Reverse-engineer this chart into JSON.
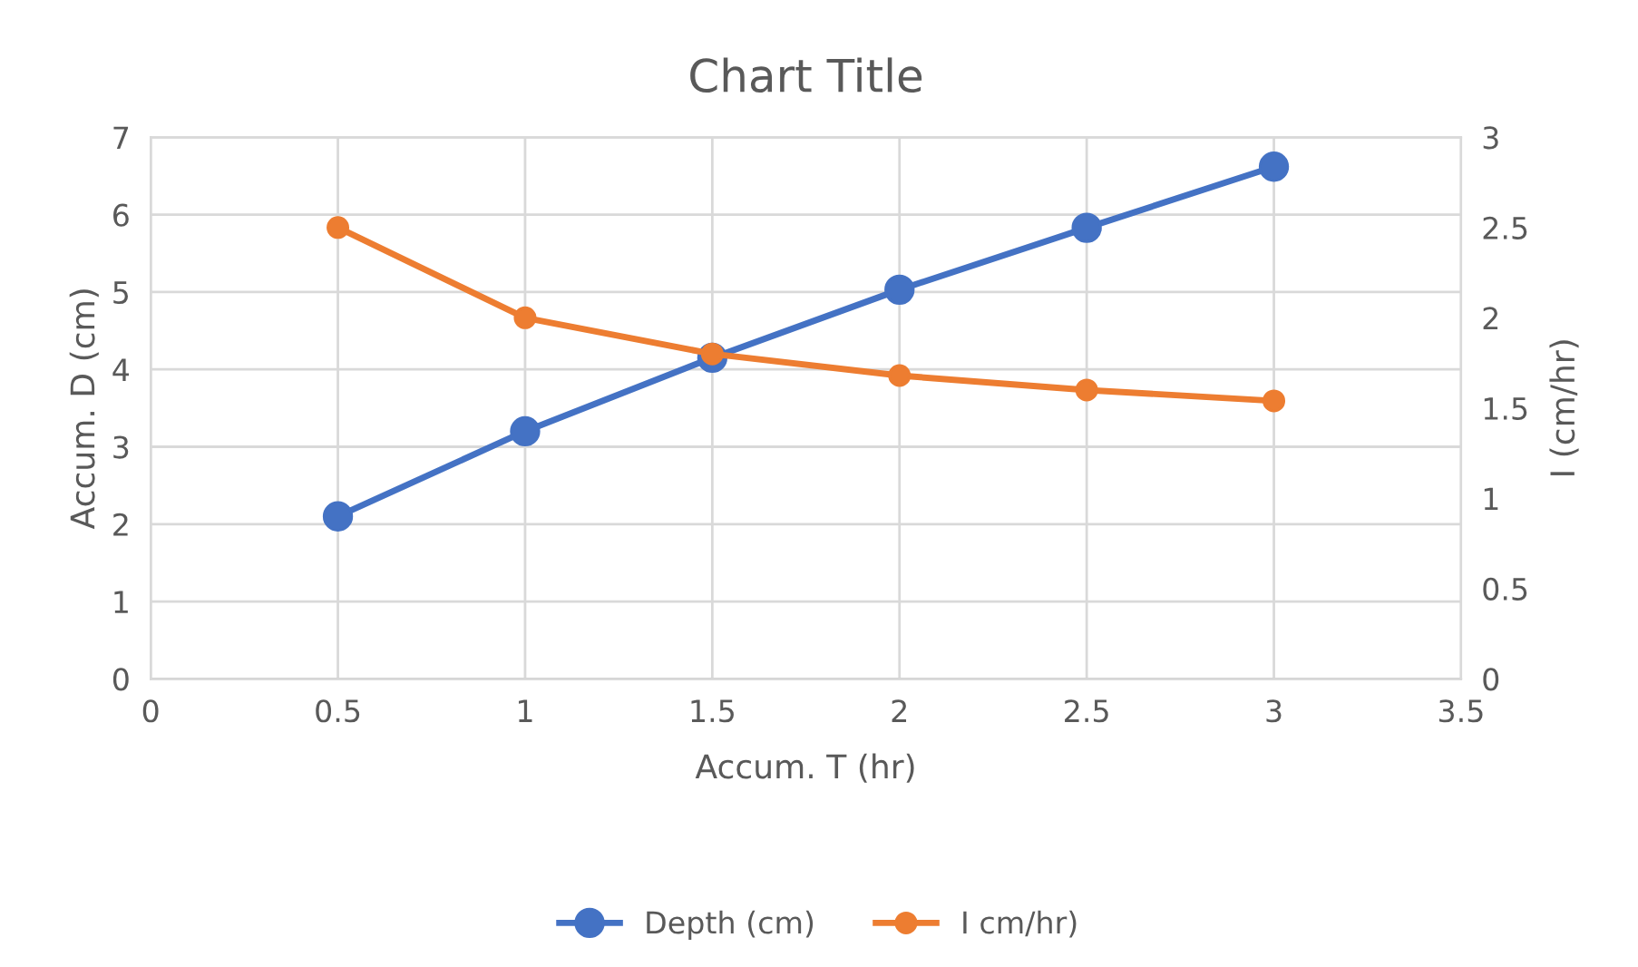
{
  "chart_data": {
    "type": "line",
    "title": "Chart Title",
    "xlabel": "Accum. T (hr)",
    "ylabel": "Accum. D (cm)",
    "y2label": "I (cm/hr)",
    "x": [
      0.5,
      1,
      1.5,
      2,
      2.5,
      3
    ],
    "series": [
      {
        "name": "Depth (cm)",
        "color": "#4472c4",
        "values": [
          2.1,
          3.2,
          4.15,
          5.03,
          5.83,
          6.62
        ]
      },
      {
        "name": "I cm/hr)",
        "color": "#ed7d31",
        "axis": "y2",
        "values": [
          2.5,
          2.0,
          1.8,
          1.68,
          1.6,
          1.54
        ]
      }
    ],
    "xlim": [
      0,
      3.5
    ],
    "xticks": [
      0,
      0.5,
      1,
      1.5,
      2,
      2.5,
      3,
      3.5
    ],
    "ylim": [
      0,
      7
    ],
    "yticks": [
      0,
      1,
      2,
      3,
      4,
      5,
      6,
      7
    ],
    "y2lim": [
      0,
      3
    ],
    "y2ticks": [
      0,
      0.5,
      1,
      1.5,
      2,
      2.5,
      3
    ],
    "grid": true,
    "legend": "bottom",
    "marker": "circle",
    "line_style": "solid"
  }
}
